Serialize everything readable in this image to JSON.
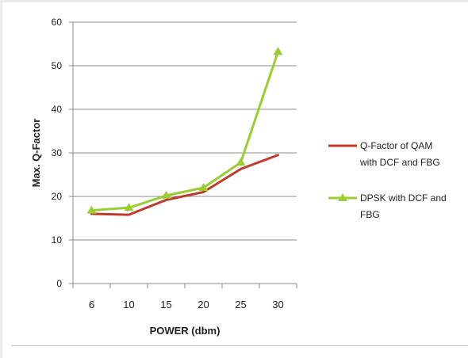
{
  "chart_data": {
    "type": "line",
    "categories": [
      "6",
      "10",
      "15",
      "20",
      "25",
      "30"
    ],
    "series": [
      {
        "name": "Q-Factor of QAM with DCF and FBG",
        "legend_lines": [
          "Q-Factor of QAM",
          "with DCF and FBG"
        ],
        "values": [
          16,
          15.8,
          19.2,
          21,
          26.3,
          29.5
        ],
        "color": "#c0392b",
        "marker": "none"
      },
      {
        "name": "DPSK with DCF and FBG",
        "legend_lines": [
          "DPSK with DCF and",
          "FBG"
        ],
        "values": [
          16.8,
          17.4,
          20.2,
          22,
          27.8,
          53.2
        ],
        "color": "#9acd32",
        "marker": "triangle"
      }
    ],
    "title": "",
    "xlabel": "POWER (dbm)",
    "ylabel": "Max. Q-Factor",
    "ylim": [
      0,
      60
    ],
    "yticks": [
      0,
      10,
      20,
      30,
      40,
      50,
      60
    ],
    "grid": true,
    "legend_position": "right"
  }
}
